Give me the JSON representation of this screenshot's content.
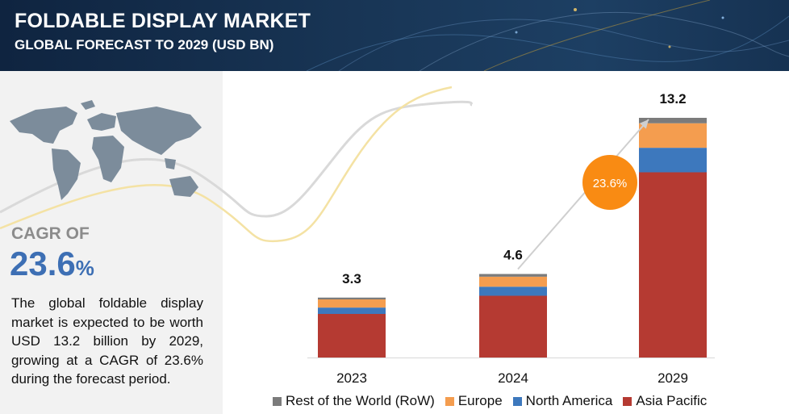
{
  "header": {
    "title": "FOLDABLE DISPLAY MARKET",
    "subtitle": "GLOBAL FORECAST TO 2029 (USD BN)"
  },
  "left_panel": {
    "icon": "world-map-icon",
    "cagr_label": "CAGR OF",
    "cagr_value": "23.6",
    "cagr_unit": "%",
    "description": "The global foldable display market is expected to be worth USD 13.2 billion by 2029, growing at a CAGR of 23.6% during the forecast period."
  },
  "chart_data": {
    "type": "bar",
    "stacked": true,
    "categories": [
      "2023",
      "2024",
      "2029"
    ],
    "totals": [
      "3.3",
      "4.6",
      "13.2"
    ],
    "series": [
      {
        "name": "Asia Pacific",
        "color": "#b53a32",
        "values": [
          2.4,
          3.4,
          10.2
        ]
      },
      {
        "name": "North America",
        "color": "#3d78bd",
        "values": [
          0.35,
          0.5,
          1.35
        ]
      },
      {
        "name": "Europe",
        "color": "#f49d4f",
        "values": [
          0.45,
          0.55,
          1.35
        ]
      },
      {
        "name": "Rest of the World (RoW)",
        "color": "#7b7b7b",
        "values": [
          0.1,
          0.15,
          0.3
        ]
      }
    ],
    "legend_order": [
      "Rest of the World (RoW)",
      "Europe",
      "North America",
      "Asia Pacific"
    ],
    "legend_position": "bottom",
    "cagr_badge": "23.6%",
    "cagr_badge_color": "#f98b13",
    "ylim": [
      0,
      13.2
    ],
    "grid": false
  }
}
